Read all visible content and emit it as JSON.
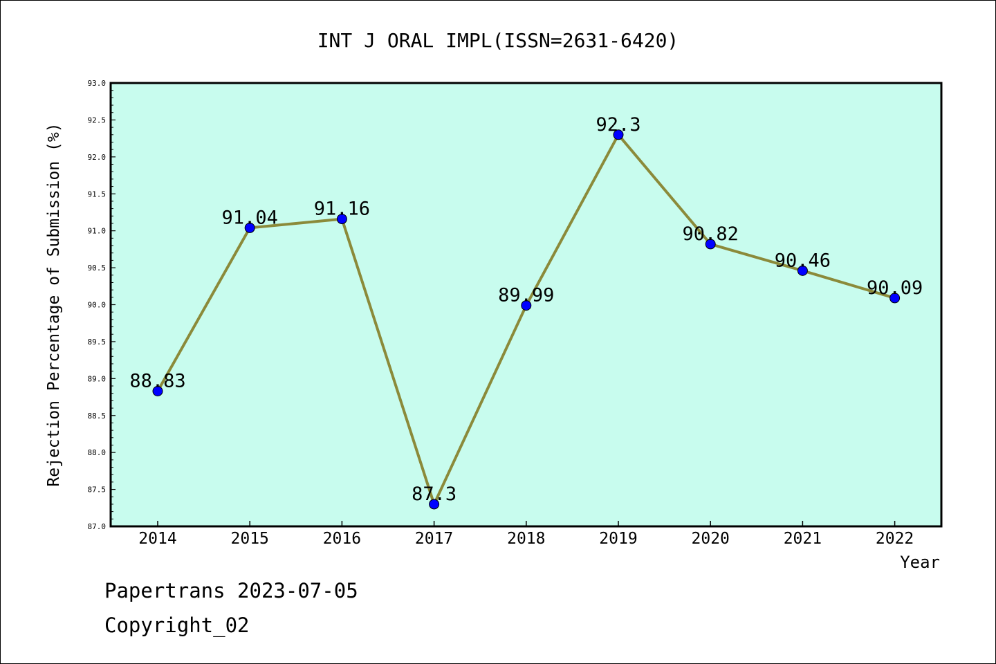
{
  "colors": {
    "plot_background": "#c8fcee",
    "line": "#8b8a3a",
    "marker": "#0000ff",
    "text": "#000000"
  },
  "chart_data": {
    "type": "line",
    "title": "INT J ORAL IMPL(ISSN=2631-6420)",
    "xlabel": "Year",
    "ylabel": "Rejection Percentage of Submission (%)",
    "categories": [
      "2014",
      "2015",
      "2016",
      "2017",
      "2018",
      "2019",
      "2020",
      "2021",
      "2022"
    ],
    "series": [
      {
        "values": [
          88.83,
          91.04,
          91.16,
          87.3,
          89.99,
          92.3,
          90.82,
          90.46,
          90.09
        ],
        "labels": [
          "88.83",
          "91.04",
          "91.16",
          "87.3",
          "89.99",
          "92.3",
          "90.82",
          "90.46",
          "90.09"
        ]
      }
    ],
    "ylim": [
      87.0,
      93.0
    ],
    "yticks": [
      "87.0",
      "87.5",
      "88.0",
      "88.5",
      "89.0",
      "89.5",
      "90.0",
      "90.5",
      "91.0",
      "91.5",
      "92.0",
      "92.5",
      "93.0"
    ],
    "grid": false,
    "legend": false
  },
  "footer": {
    "line1": "Papertrans 2023-07-05",
    "line2": "Copyright_02"
  }
}
